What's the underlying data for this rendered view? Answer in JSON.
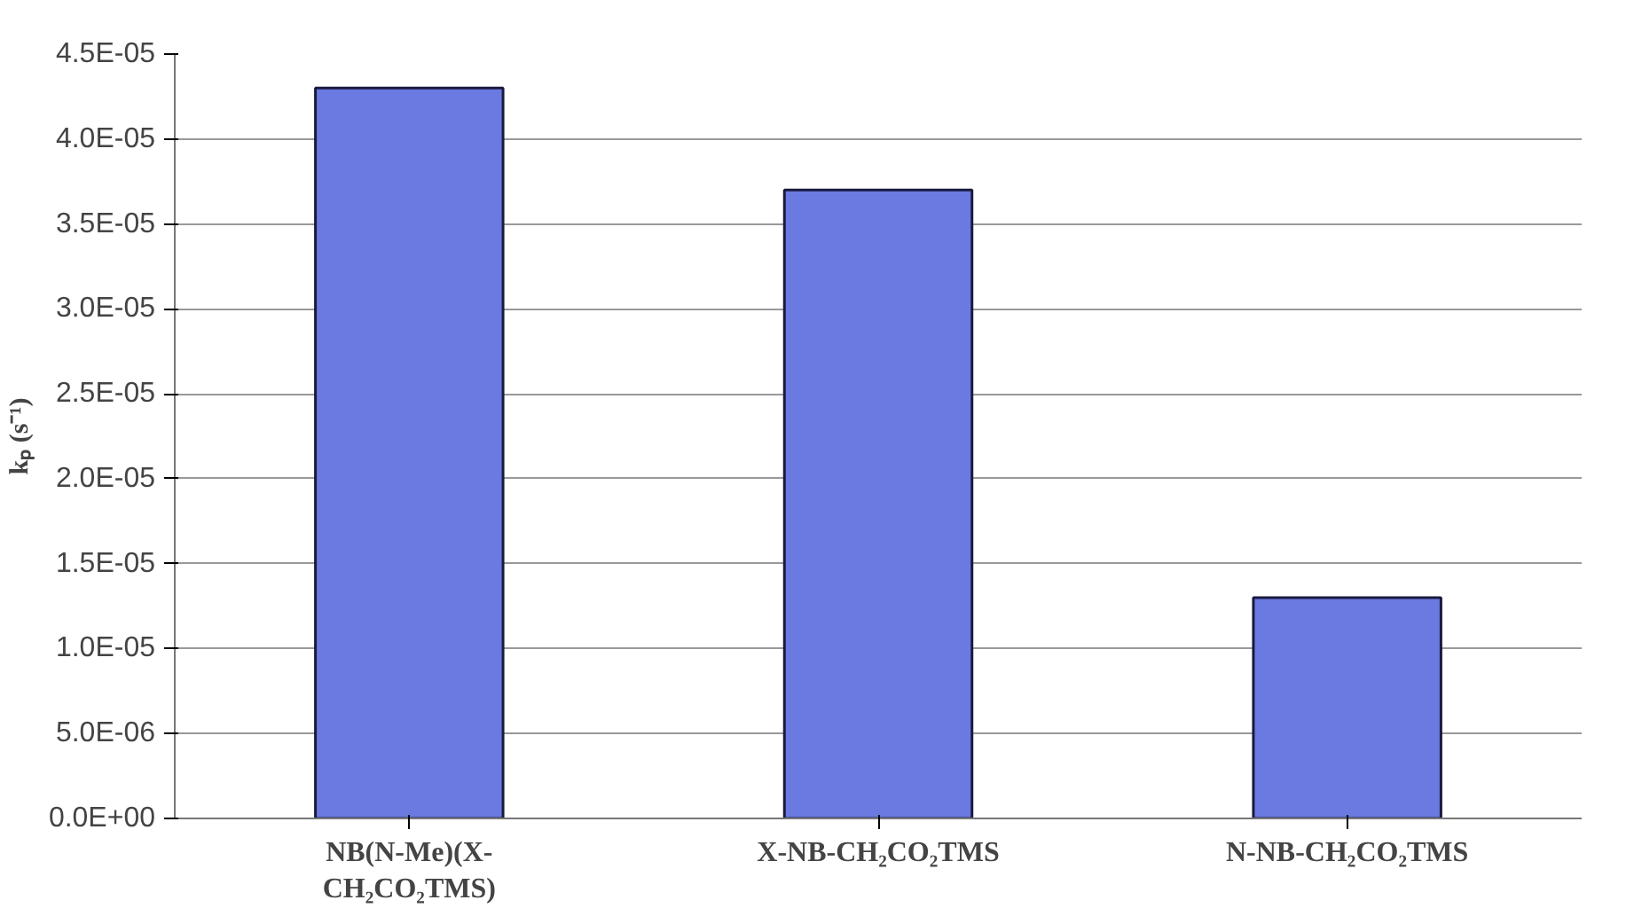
{
  "chart_data": {
    "type": "bar",
    "categories": [
      "NB(N-Me)(X-CH₂CO₂TMS)",
      "X-NB-CH₂CO₂TMS",
      "N-NB-CH₂CO₂TMS"
    ],
    "values": [
      4.3e-05,
      3.7e-05,
      1.3e-05
    ],
    "color": "#6b7ae0",
    "ylabel": "kₚ (s⁻¹)",
    "ylim": [
      0,
      4.5e-05
    ],
    "yticks": [
      {
        "value": 0,
        "label": "0.0E+00"
      },
      {
        "value": 5e-06,
        "label": "5.0E-06"
      },
      {
        "value": 1e-05,
        "label": "1.0E-05"
      },
      {
        "value": 1.5e-05,
        "label": "1.5E-05"
      },
      {
        "value": 2e-05,
        "label": "2.0E-05"
      },
      {
        "value": 2.5e-05,
        "label": "2.5E-05"
      },
      {
        "value": 3e-05,
        "label": "3.0E-05"
      },
      {
        "value": 3.5e-05,
        "label": "3.5E-05"
      },
      {
        "value": 4e-05,
        "label": "4.0E-05"
      },
      {
        "value": 4.5e-05,
        "label": "4.5E-05"
      }
    ],
    "grid": "y"
  }
}
